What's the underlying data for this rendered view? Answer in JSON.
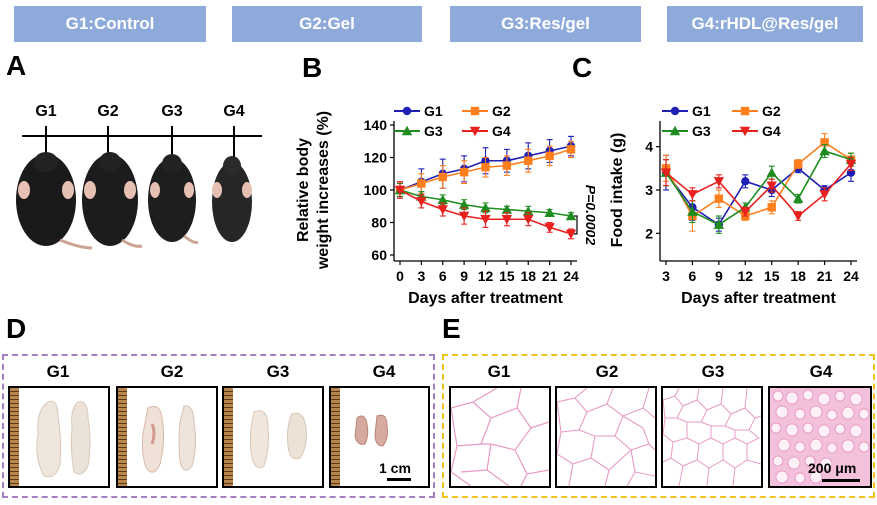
{
  "groups": [
    "G1:Control",
    "G2:Gel",
    "G3:Res/gel",
    "G4:rHDL@Res/gel"
  ],
  "panels": {
    "a": "A",
    "b": "B",
    "c": "C",
    "d": "D",
    "e": "E"
  },
  "panel_a": {
    "mouse_labels": [
      "G1",
      "G2",
      "G3",
      "G4"
    ]
  },
  "panel_d": {
    "tile_labels": [
      "G1",
      "G2",
      "G3",
      "G4"
    ],
    "scale_bar": "1 cm"
  },
  "panel_e": {
    "tile_labels": [
      "G1",
      "G2",
      "G3",
      "G4"
    ],
    "scale_bar": "200 μm"
  },
  "colors": {
    "header": "#8eaadb",
    "G1": "#1f1fb4",
    "G2": "#ff7f1e",
    "G3": "#1e8c1e",
    "G4": "#e8201e",
    "panel_d_border": "#a57fc3",
    "panel_e_border": "#f2c21e"
  },
  "chart_data": [
    {
      "type": "line",
      "id": "weight",
      "ylabel_lines": [
        "Relative body",
        "weight increases (%)"
      ],
      "xlabel": "Days after treatment",
      "x": [
        0,
        3,
        6,
        9,
        12,
        15,
        18,
        21,
        24
      ],
      "ylim": [
        60,
        140
      ],
      "yticks": [
        60,
        80,
        100,
        120,
        140
      ],
      "annotation": "P=0.0002",
      "legend": [
        "G1",
        "G2",
        "G3",
        "G4"
      ],
      "series": [
        {
          "name": "G1",
          "values": [
            100,
            105,
            110,
            113,
            118,
            118,
            121,
            124,
            127
          ],
          "errors": [
            5,
            8,
            9,
            8,
            8,
            7,
            8,
            7,
            6
          ]
        },
        {
          "name": "G2",
          "values": [
            100,
            104,
            108,
            111,
            114,
            115,
            118,
            121,
            125
          ],
          "errors": [
            4,
            6,
            7,
            7,
            6,
            6,
            7,
            6,
            5
          ]
        },
        {
          "name": "G3",
          "values": [
            100,
            96,
            94,
            91,
            89,
            88,
            87,
            86,
            84
          ],
          "errors": [
            4,
            3,
            3,
            3,
            3,
            2,
            3,
            2,
            2
          ]
        },
        {
          "name": "G4",
          "values": [
            100,
            93,
            88,
            84,
            82,
            82,
            82,
            77,
            73
          ],
          "errors": [
            5,
            4,
            4,
            5,
            5,
            4,
            4,
            3,
            3
          ]
        }
      ]
    },
    {
      "type": "line",
      "id": "food",
      "ylabel": "Food intake (g)",
      "xlabel": "Days after treatment",
      "x": [
        3,
        6,
        9,
        12,
        15,
        18,
        21,
        24
      ],
      "ylim": [
        1.5,
        4.5
      ],
      "yticks": [
        2,
        3,
        4
      ],
      "legend": [
        "G1",
        "G2",
        "G3",
        "G4"
      ],
      "series": [
        {
          "name": "G1",
          "values": [
            3.4,
            2.6,
            2.2,
            3.2,
            3.0,
            3.5,
            3.0,
            3.4
          ],
          "errors": [
            0.4,
            0.3,
            0.15,
            0.15,
            0.15,
            0.1,
            0.1,
            0.2
          ]
        },
        {
          "name": "G2",
          "values": [
            3.5,
            2.4,
            2.8,
            2.4,
            2.6,
            3.6,
            4.1,
            3.7
          ],
          "errors": [
            0.3,
            0.35,
            0.2,
            0.1,
            0.15,
            0.1,
            0.2,
            0.15
          ]
        },
        {
          "name": "G3",
          "values": [
            3.4,
            2.5,
            2.2,
            2.6,
            3.4,
            2.8,
            3.9,
            3.7
          ],
          "errors": [
            0.3,
            0.25,
            0.2,
            0.1,
            0.15,
            0.1,
            0.15,
            0.15
          ]
        },
        {
          "name": "G4",
          "values": [
            3.4,
            2.9,
            3.2,
            2.5,
            3.1,
            2.4,
            2.9,
            3.6
          ],
          "errors": [
            0.3,
            0.15,
            0.15,
            0.1,
            0.15,
            0.1,
            0.15,
            0.15
          ]
        }
      ]
    }
  ]
}
